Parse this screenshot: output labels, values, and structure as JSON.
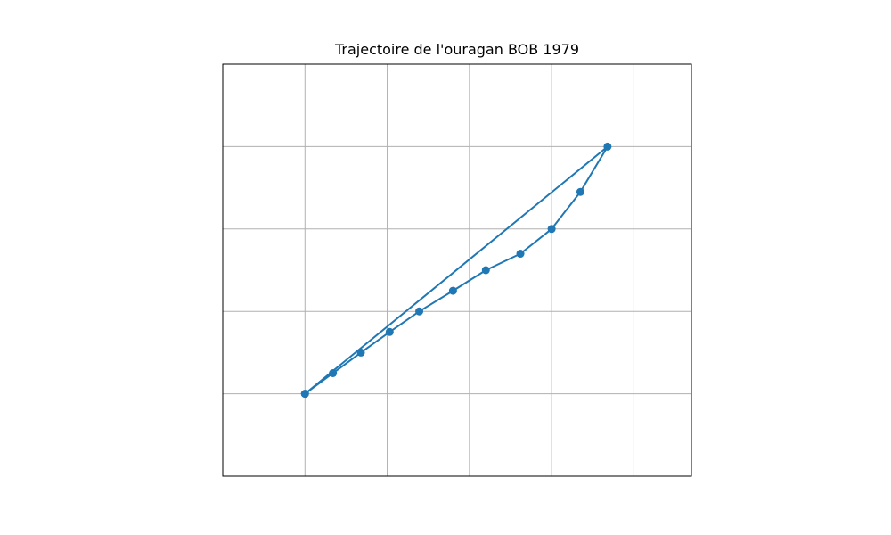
{
  "chart_data": {
    "type": "line",
    "title": "Trajectoire de l'ouragan BOB 1979",
    "xlabel": "",
    "ylabel": "",
    "xlim": [
      -1,
      4.7
    ],
    "ylim": [
      -1,
      4
    ],
    "grid": true,
    "x_gridlines": [
      0,
      1,
      2,
      3,
      4
    ],
    "y_gridlines": [
      0,
      1,
      2,
      3
    ],
    "series": [
      {
        "color": "#1f77b4",
        "marker": "circle",
        "x": [
          0,
          0.34,
          0.68,
          1.03,
          1.39,
          1.8,
          2.2,
          2.62,
          3.0,
          3.35,
          3.68,
          0
        ],
        "y": [
          0,
          0.25,
          0.5,
          0.75,
          1.0,
          1.25,
          1.5,
          1.7,
          2.0,
          2.45,
          3.0,
          0
        ]
      }
    ]
  }
}
